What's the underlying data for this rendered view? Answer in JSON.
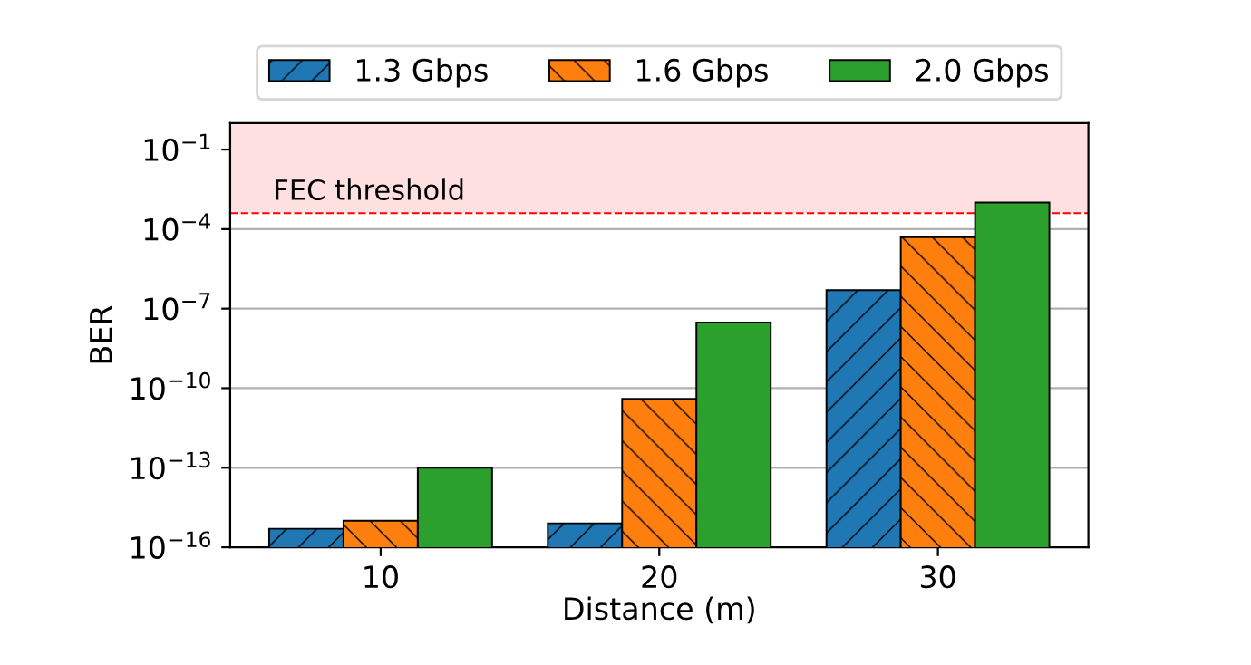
{
  "chart_data": {
    "type": "bar",
    "xlabel": "Distance (m)",
    "ylabel": "BER",
    "categories": [
      "10",
      "20",
      "30"
    ],
    "series": [
      {
        "name": "1.3 Gbps",
        "color": "#1f77b4",
        "values": [
          5e-16,
          8e-16,
          5e-07
        ]
      },
      {
        "name": "1.6 Gbps",
        "color": "#ff7f0e",
        "values": [
          1e-15,
          4e-11,
          5e-05
        ]
      },
      {
        "name": "2.0 Gbps",
        "color": "#2ca02c",
        "values": [
          1e-13,
          3e-08,
          0.001
        ]
      }
    ],
    "log": "y",
    "ylim": [
      1e-16,
      1
    ],
    "yticks": [
      {
        "value": 1e-16,
        "label": "10$^{−16}$"
      },
      {
        "value": 1e-13,
        "label": "10$^{−13}$"
      },
      {
        "value": 1e-10,
        "label": "10$^{−10}$"
      },
      {
        "value": 1e-07,
        "label": "10$^{−7}$"
      },
      {
        "value": 0.0001,
        "label": "10$^{−4}$"
      },
      {
        "value": 0.1,
        "label": "10$^{−1}$"
      }
    ],
    "grid": "y",
    "legend": "top",
    "ref_lines": [
      {
        "axis": "y",
        "value": 0.0004,
        "label": "FEC threshold",
        "color": "#ff0000",
        "line_style": "dashed"
      }
    ],
    "bands": [
      {
        "axis": "y",
        "from": 0.0004,
        "to": 1,
        "color": "#ffe0e0"
      }
    ]
  }
}
